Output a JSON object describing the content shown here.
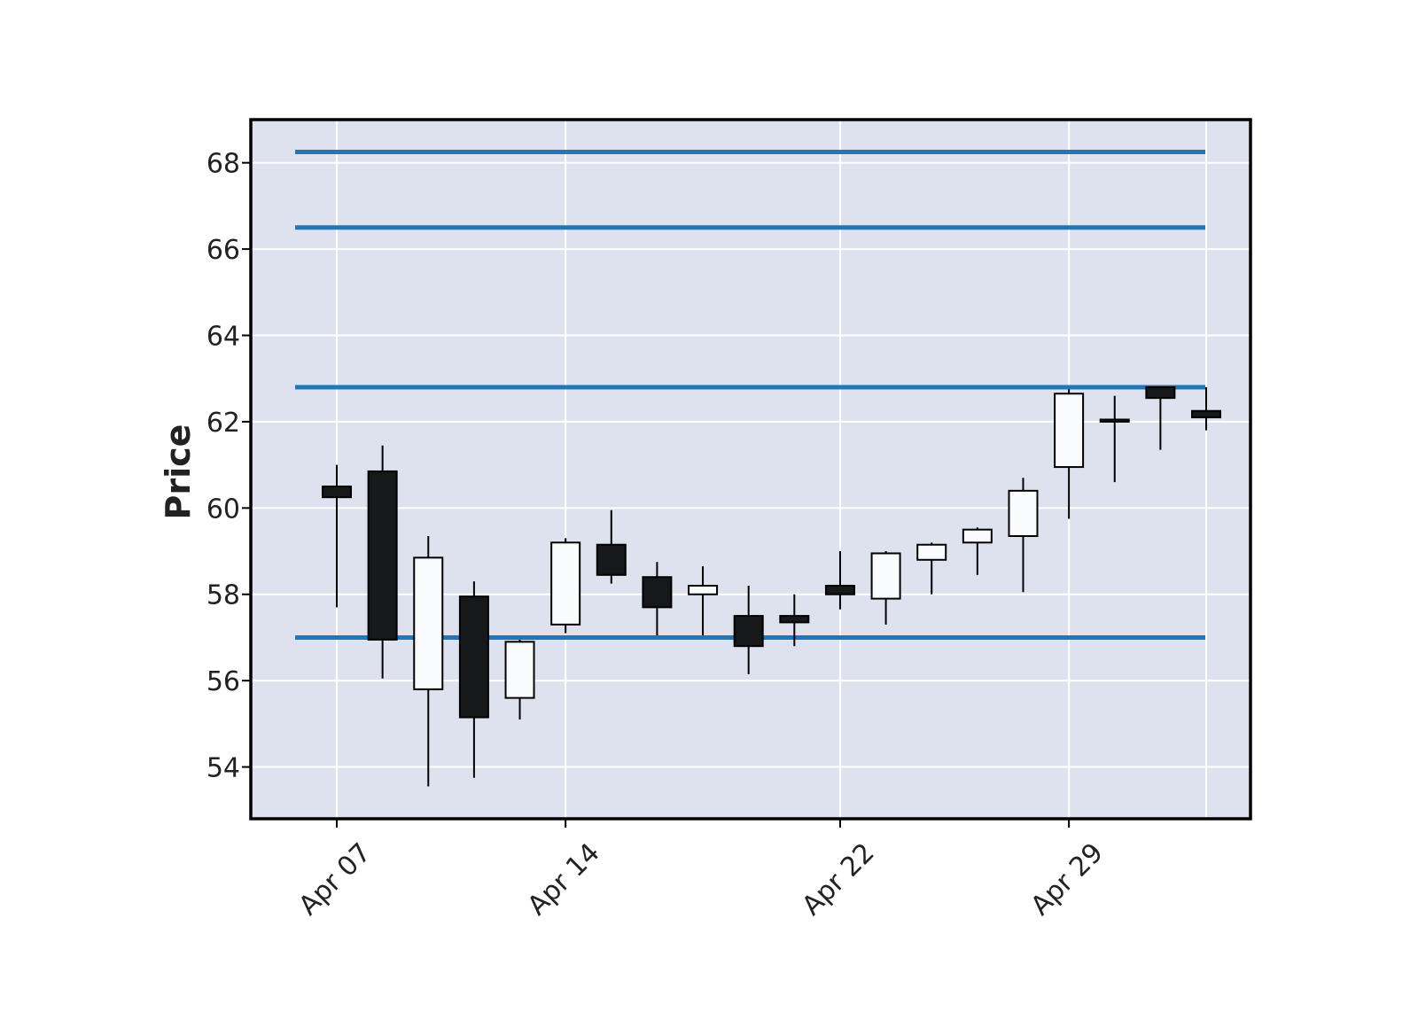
{
  "chart_data": {
    "type": "candlestick",
    "title": "",
    "xlabel": "",
    "ylabel": "Price",
    "ylim": [
      52.8,
      69.0
    ],
    "y_ticks": [
      54,
      56,
      58,
      60,
      62,
      64,
      66,
      68
    ],
    "x_tick_labels": [
      {
        "date": "2024-04-07",
        "label": "Apr 07"
      },
      {
        "date": "2024-04-14",
        "label": "Apr 14"
      },
      {
        "date": "2024-04-22",
        "label": "Apr 22"
      },
      {
        "date": "2024-04-29",
        "label": "Apr 29"
      }
    ],
    "grid": true,
    "colors": {
      "plot_background": "#dde2ee",
      "up_body": "#fafbfd",
      "down_body": "#17181a",
      "wick": "#000000",
      "grid": "#ffffff",
      "hline": "#2176b7",
      "frame": "#000000"
    },
    "horizontal_lines": [
      68.25,
      66.5,
      62.8,
      57.0
    ],
    "candles": [
      {
        "date": "2024-04-07",
        "open": 60.5,
        "high": 61.0,
        "low": 57.7,
        "close": 60.25
      },
      {
        "date": "2024-04-08",
        "open": 60.85,
        "high": 61.45,
        "low": 56.05,
        "close": 56.95
      },
      {
        "date": "2024-04-09",
        "open": 55.8,
        "high": 59.35,
        "low": 53.55,
        "close": 58.85
      },
      {
        "date": "2024-04-10",
        "open": 57.95,
        "high": 58.3,
        "low": 53.75,
        "close": 55.15
      },
      {
        "date": "2024-04-11",
        "open": 55.6,
        "high": 56.95,
        "low": 55.1,
        "close": 56.9
      },
      {
        "date": "2024-04-14",
        "open": 57.3,
        "high": 59.3,
        "low": 57.1,
        "close": 59.2
      },
      {
        "date": "2024-04-15",
        "open": 59.15,
        "high": 59.95,
        "low": 58.25,
        "close": 58.45
      },
      {
        "date": "2024-04-16",
        "open": 58.4,
        "high": 58.75,
        "low": 57.05,
        "close": 57.7
      },
      {
        "date": "2024-04-17",
        "open": 58.0,
        "high": 58.65,
        "low": 57.05,
        "close": 58.2
      },
      {
        "date": "2024-04-18",
        "open": 57.5,
        "high": 58.2,
        "low": 56.15,
        "close": 56.8
      },
      {
        "date": "2024-04-19",
        "open": 57.5,
        "high": 58.0,
        "low": 56.8,
        "close": 57.35
      },
      {
        "date": "2024-04-22",
        "open": 58.2,
        "high": 59.0,
        "low": 57.65,
        "close": 58.0
      },
      {
        "date": "2024-04-23",
        "open": 57.9,
        "high": 59.0,
        "low": 57.3,
        "close": 58.95
      },
      {
        "date": "2024-04-24",
        "open": 58.8,
        "high": 59.2,
        "low": 58.0,
        "close": 59.15
      },
      {
        "date": "2024-04-25",
        "open": 59.2,
        "high": 59.55,
        "low": 58.45,
        "close": 59.5
      },
      {
        "date": "2024-04-26",
        "open": 59.35,
        "high": 60.7,
        "low": 58.05,
        "close": 60.4
      },
      {
        "date": "2024-04-29",
        "open": 60.95,
        "high": 62.75,
        "low": 59.75,
        "close": 62.65
      },
      {
        "date": "2024-04-30",
        "open": 62.05,
        "high": 62.6,
        "low": 60.6,
        "close": 62.0
      },
      {
        "date": "2024-05-01",
        "open": 62.8,
        "high": 62.8,
        "low": 61.35,
        "close": 62.55
      },
      {
        "date": "2024-05-02",
        "open": 62.25,
        "high": 62.8,
        "low": 61.8,
        "close": 62.1
      }
    ]
  }
}
